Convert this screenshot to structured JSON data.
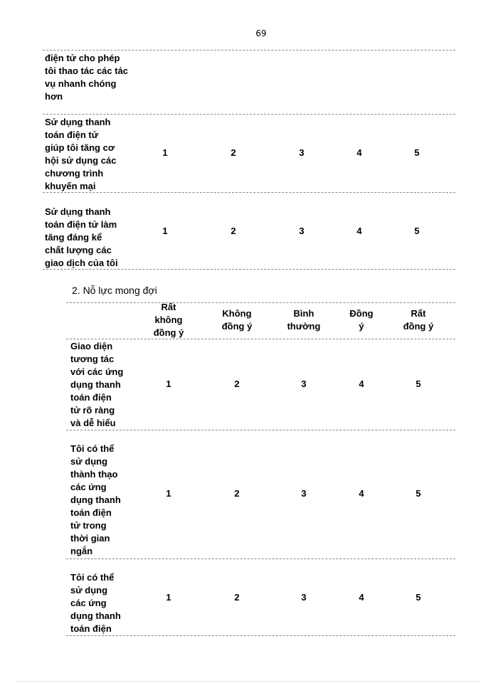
{
  "page_number": "69",
  "table1": {
    "rows": [
      {
        "statement": "điện tử cho phép\ntôi thao tác các tác\nvụ nhanh chóng\nhơn",
        "scores": []
      },
      {
        "statement": "Sử dụng thanh\ntoán điện tử\ngiúp tôi tăng cơ\nhội sử dụng các\nchương trình\nkhuyến mại",
        "scores": [
          "1",
          "2",
          "3",
          "4",
          "5"
        ]
      },
      {
        "statement": "Sử dụng thanh\ntoán điện tử làm\ntăng đáng kể\nchất lượng các\ngiao dịch của tôi",
        "scores": [
          "1",
          "2",
          "3",
          "4",
          "5"
        ]
      }
    ]
  },
  "section2": {
    "title": "2. Nỗ lực mong đợi",
    "headers": [
      "Rất\nkhông\nđồng ý",
      "Không\nđồng ý",
      "Bình\nthường",
      "Đồng\ný",
      "Rất\nđồng ý"
    ],
    "rows": [
      {
        "statement": "Giao diện\ntương tác\nvới các ứng\ndụng thanh\ntoán điện\ntử rõ ràng\nvà dễ hiểu",
        "scores": [
          "1",
          "2",
          "3",
          "4",
          "5"
        ]
      },
      {
        "statement": "Tôi có thể\nsử dụng\nthành thạo\ncác ứng\ndụng thanh\ntoán điện\ntử trong\nthời gian\nngắn",
        "scores": [
          "1",
          "2",
          "3",
          "4",
          "5"
        ]
      },
      {
        "statement": "Tôi có thể\nsử dụng\ncác ứng\ndụng thanh\ntoán điện",
        "scores": [
          "1",
          "2",
          "3",
          "4",
          "5"
        ]
      }
    ]
  }
}
